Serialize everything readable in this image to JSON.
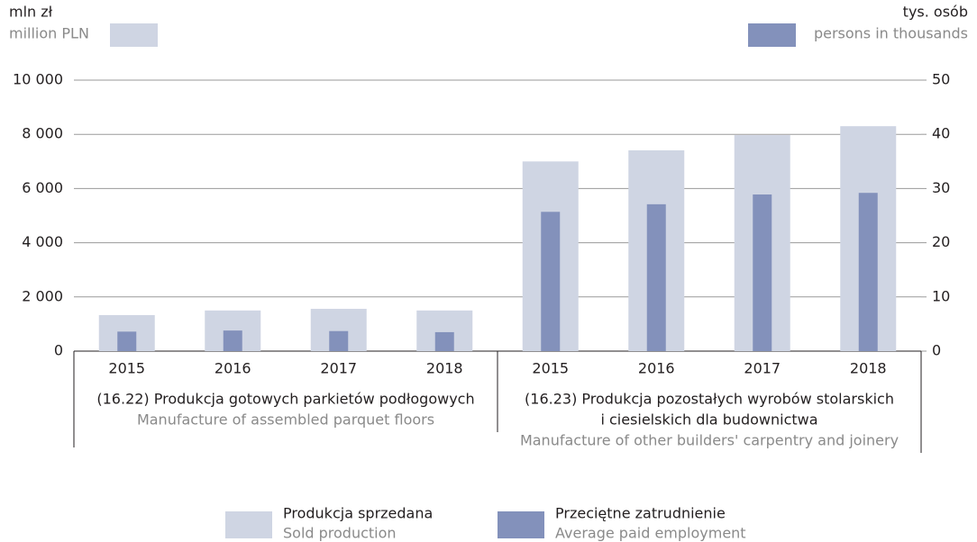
{
  "chart_data": {
    "type": "bar",
    "y_label": "mln zł",
    "y_label_en": "million PLN",
    "y2_label": "tys. osób",
    "y2_label_en": "persons in thousands",
    "categories": [
      "2015",
      "2016",
      "2017",
      "2018",
      "2015",
      "2016",
      "2017",
      "2018"
    ],
    "groups": [
      {
        "size": 4,
        "label": [
          "(16.22) Produkcja gotowych parkietów podłogowych"
        ],
        "label_en": "Manufacture of assembled parquet floors"
      },
      {
        "size": 4,
        "label": [
          "(16.23) Produkcja pozostałych wyrobów stolarskich",
          "i ciesielskich dla budownictwa"
        ],
        "label_en": "Manufacture of other builders' carpentry and joinery"
      }
    ],
    "series": [
      {
        "name": "Produkcja sprzedana",
        "name_en": "Sold production",
        "color": "#cfd5e3",
        "axis": "y",
        "values": [
          1330,
          1500,
          1560,
          1500,
          7000,
          7410,
          7970,
          8300
        ]
      },
      {
        "name": "Przeciętne zatrudnienie",
        "name_en": "Average paid employment",
        "color": "#8391bb",
        "axis": "y2",
        "values": [
          3.6,
          3.8,
          3.7,
          3.5,
          25.7,
          27.1,
          28.9,
          29.2
        ]
      }
    ],
    "ylim": [
      0,
      10000
    ],
    "yticks": [
      0,
      {
        "value": 2000,
        "label": "2 000"
      },
      {
        "value": 4000,
        "label": "4 000"
      },
      {
        "value": 6000,
        "label": "6 000"
      },
      {
        "value": 8000,
        "label": "8 000"
      },
      {
        "value": 10000,
        "label": "10 000"
      }
    ],
    "y2lim": [
      0,
      50
    ],
    "y2ticks": [
      0,
      10,
      20,
      30,
      40,
      50
    ],
    "grid": true
  }
}
